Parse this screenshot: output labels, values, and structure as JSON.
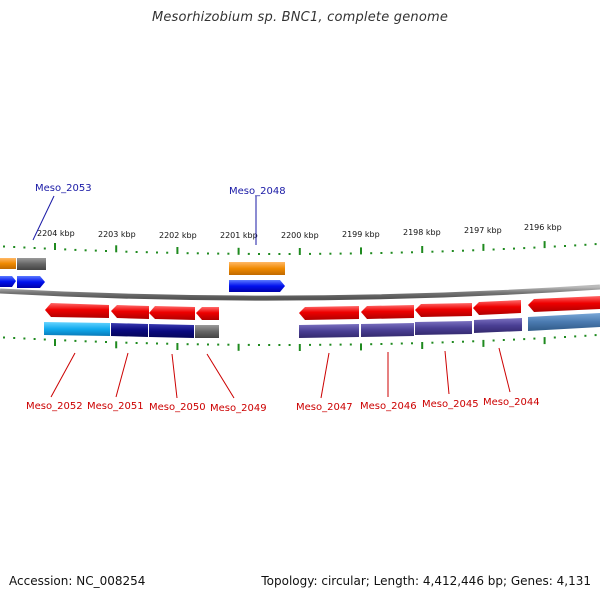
{
  "title": "Mesorhizobium sp. BNC1, complete genome",
  "footer": {
    "accession": "Accession: NC_008254",
    "topology": "Topology: circular; Length: 4,412,446 bp; Genes: 4,131"
  },
  "scale_labels": [
    "2204 kbp",
    "2203 kbp",
    "2202 kbp",
    "2201 kbp",
    "2200 kbp",
    "2199 kbp",
    "2198 kbp",
    "2197 kbp",
    "2196 kbp"
  ],
  "genes_forward": [
    "Meso_2053",
    "Meso_2048"
  ],
  "genes_reverse": [
    "Meso_2052",
    "Meso_2051",
    "Meso_2050",
    "Meso_2049",
    "Meso_2047",
    "Meso_2046",
    "Meso_2045",
    "Meso_2044"
  ],
  "colors": {
    "forward_label": "#1a1aa6",
    "reverse_label": "#cc0000",
    "tick": "#1f8a1f",
    "backbone": "#8a8a8a"
  }
}
